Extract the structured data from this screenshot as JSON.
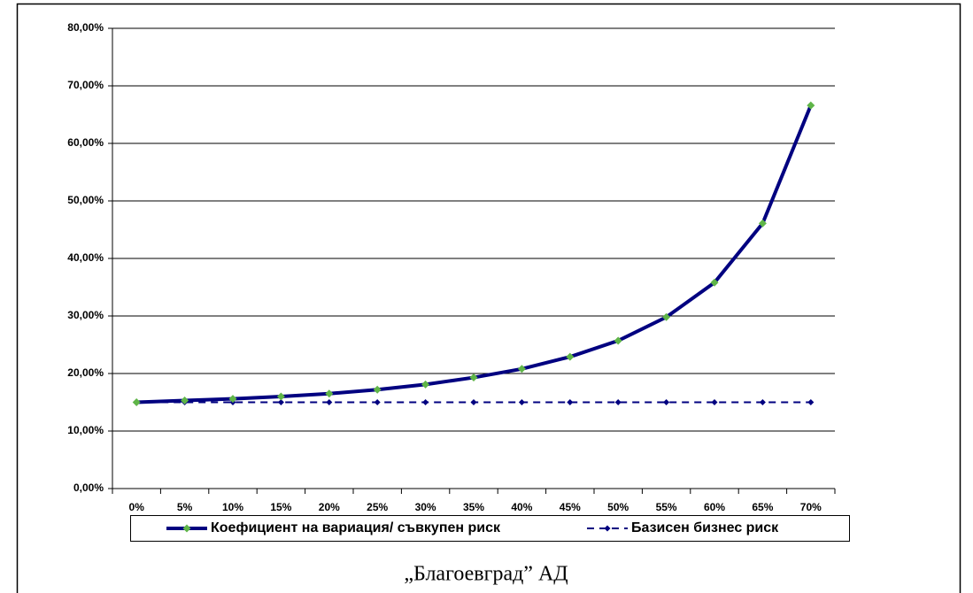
{
  "chart_data": {
    "type": "line",
    "categories": [
      "0%",
      "5%",
      "10%",
      "15%",
      "20%",
      "25%",
      "30%",
      "35%",
      "40%",
      "45%",
      "50%",
      "55%",
      "60%",
      "65%",
      "70%"
    ],
    "series": [
      {
        "name": "Коефициент на вариация/ съвкупен риск",
        "color": "#000080",
        "marker_color": "#5fb548",
        "line_style": "solid",
        "values": [
          15.0,
          15.3,
          15.6,
          16.0,
          16.5,
          17.2,
          18.1,
          19.3,
          20.8,
          22.9,
          25.7,
          29.8,
          35.8,
          46.1,
          66.6
        ]
      },
      {
        "name": "Базисен бизнес риск",
        "color": "#000080",
        "marker_color": "#000080",
        "line_style": "dashed",
        "values": [
          15,
          15,
          15,
          15,
          15,
          15,
          15,
          15,
          15,
          15,
          15,
          15,
          15,
          15,
          15
        ]
      }
    ],
    "ylim": [
      0,
      80
    ],
    "yticks": [
      {
        "value": 0,
        "label": "0,00%"
      },
      {
        "value": 10,
        "label": "10,00%"
      },
      {
        "value": 20,
        "label": "20,00%"
      },
      {
        "value": 30,
        "label": "30,00%"
      },
      {
        "value": 40,
        "label": "40,00%"
      },
      {
        "value": 50,
        "label": "50,00%"
      },
      {
        "value": 60,
        "label": "60,00%"
      },
      {
        "value": 70,
        "label": "70,00%"
      },
      {
        "value": 80,
        "label": "80,00%"
      }
    ],
    "grid": true
  },
  "caption": "„Благоевград” АД"
}
